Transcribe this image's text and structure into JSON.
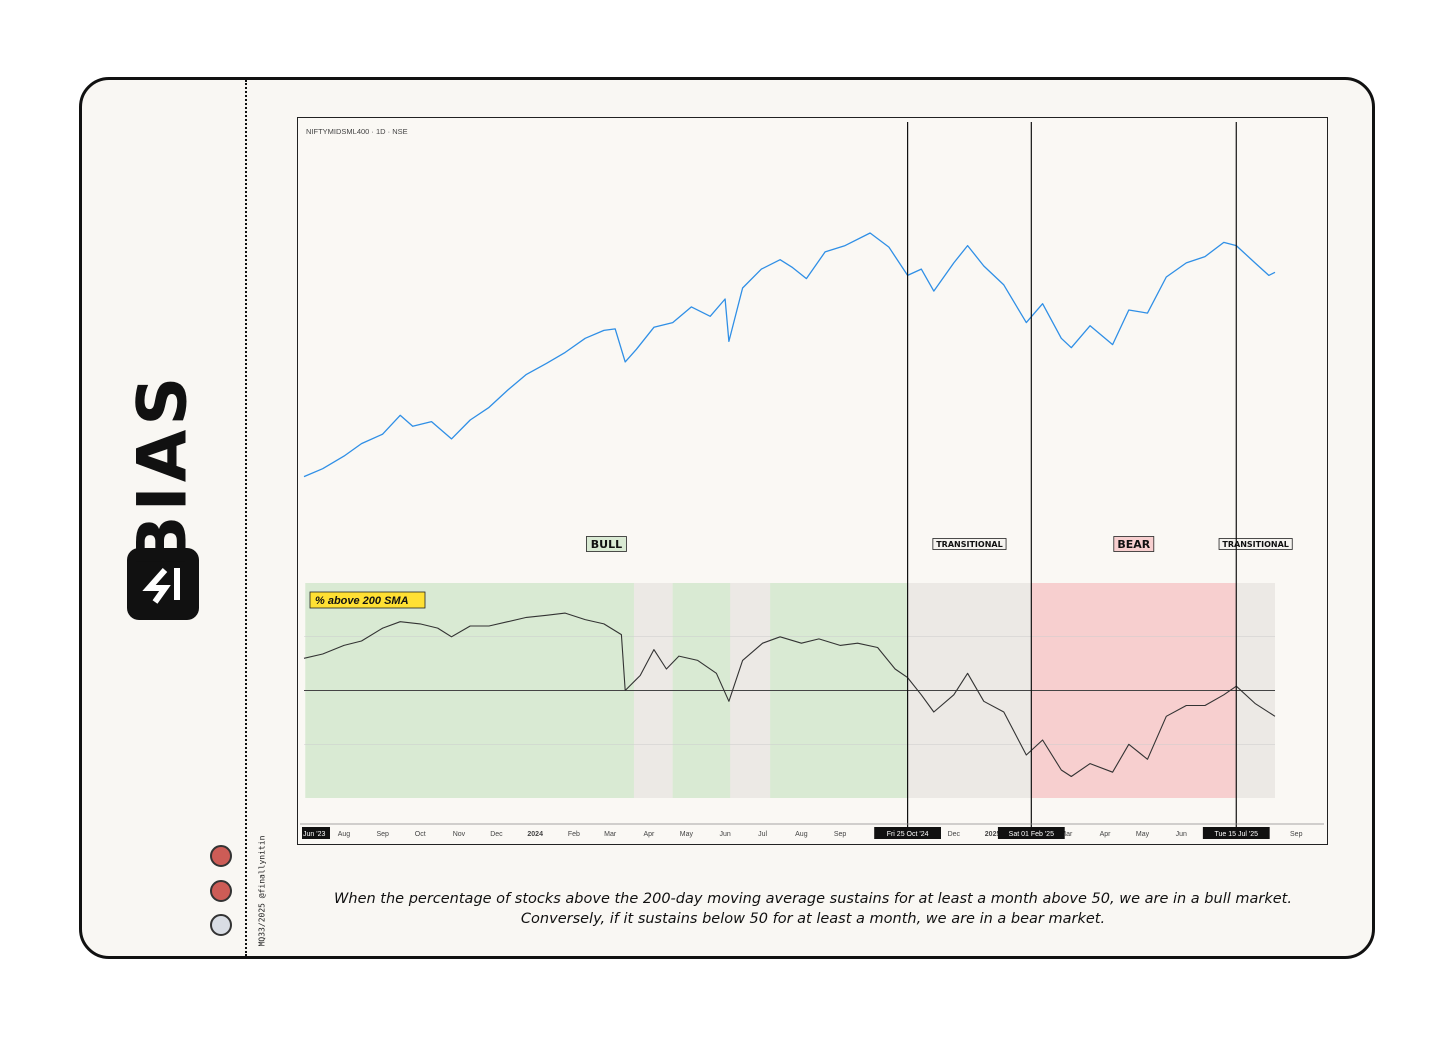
{
  "brand": {
    "name": "BIAS",
    "credit": "MQ33/2025 @finallynitin"
  },
  "dots": [
    {
      "color": "#cd5c56"
    },
    {
      "color": "#cd5c56"
    },
    {
      "color": "#d9dde4"
    }
  ],
  "caption": "When the percentage of stocks above the 200-day moving average sustains for at least a month above 50, we are in a bull market. Conversely, if it sustains below 50 for at least a month, we are in a bear market.",
  "chart_data": {
    "type": "line",
    "symbol_label": "NIFTYMIDSML400 · 1D · NSE",
    "indicator_label": "% above 200 SMA",
    "regimes": [
      {
        "label": "BULL",
        "start": "2023-07-01",
        "end": "2024-10-25",
        "color": "#d9ead3"
      },
      {
        "label": "TRANSITIONAL",
        "start": "2024-10-25",
        "end": "2025-02-01",
        "color": "#ece9e5"
      },
      {
        "label": "BEAR",
        "start": "2025-02-01",
        "end": "2025-07-15",
        "color": "#f7cfcf"
      },
      {
        "label": "TRANSITIONAL",
        "start": "2025-07-15",
        "end": "2025-08-15",
        "color": "#ece9e5"
      }
    ],
    "neutral_shading": [
      {
        "start": "2024-03-20",
        "end": "2024-04-20"
      },
      {
        "start": "2024-06-05",
        "end": "2024-07-07"
      }
    ],
    "markers": [
      {
        "date": "2024-10-25",
        "label": "Fri 25 Oct '24"
      },
      {
        "date": "2025-02-01",
        "label": "Sat 01 Feb '25"
      },
      {
        "date": "2025-07-15",
        "label": "Tue 15 Jul '25"
      }
    ],
    "x_ticks": [
      {
        "date": "2023-06-30",
        "label": "Jun '23",
        "style": "highlight"
      },
      {
        "date": "2023-08-01",
        "label": "Aug"
      },
      {
        "date": "2023-09-01",
        "label": "Sep"
      },
      {
        "date": "2023-10-01",
        "label": "Oct"
      },
      {
        "date": "2023-11-01",
        "label": "Nov"
      },
      {
        "date": "2023-12-01",
        "label": "Dec"
      },
      {
        "date": "2024-01-01",
        "label": "2024",
        "style": "bold"
      },
      {
        "date": "2024-02-01",
        "label": "Feb"
      },
      {
        "date": "2024-03-01",
        "label": "Mar"
      },
      {
        "date": "2024-04-01",
        "label": "Apr"
      },
      {
        "date": "2024-05-01",
        "label": "May"
      },
      {
        "date": "2024-06-01",
        "label": "Jun"
      },
      {
        "date": "2024-07-01",
        "label": "Jul"
      },
      {
        "date": "2024-08-01",
        "label": "Aug"
      },
      {
        "date": "2024-09-01",
        "label": "Sep"
      },
      {
        "date": "2024-12-01",
        "label": "Dec"
      },
      {
        "date": "2025-01-01",
        "label": "2025",
        "style": "bold"
      },
      {
        "date": "2025-03-01",
        "label": "Mar"
      },
      {
        "date": "2025-04-01",
        "label": "Apr"
      },
      {
        "date": "2025-05-01",
        "label": "May"
      },
      {
        "date": "2025-06-01",
        "label": "Jun"
      },
      {
        "date": "2025-09-01",
        "label": "Sep"
      }
    ],
    "x_range": [
      "2023-06-30",
      "2025-09-20"
    ],
    "price_ylim": [
      11000,
      21500
    ],
    "price_series": [
      [
        "2023-06-30",
        12000
      ],
      [
        "2023-07-15",
        12250
      ],
      [
        "2023-08-01",
        12650
      ],
      [
        "2023-08-15",
        13050
      ],
      [
        "2023-09-01",
        13350
      ],
      [
        "2023-09-15",
        13950
      ],
      [
        "2023-09-25",
        13600
      ],
      [
        "2023-10-10",
        13750
      ],
      [
        "2023-10-26",
        13200
      ],
      [
        "2023-11-10",
        13800
      ],
      [
        "2023-11-25",
        14200
      ],
      [
        "2023-12-10",
        14750
      ],
      [
        "2023-12-25",
        15250
      ],
      [
        "2024-01-10",
        15600
      ],
      [
        "2024-01-25",
        15950
      ],
      [
        "2024-02-10",
        16400
      ],
      [
        "2024-02-25",
        16650
      ],
      [
        "2024-03-05",
        16700
      ],
      [
        "2024-03-13",
        15650
      ],
      [
        "2024-03-22",
        16050
      ],
      [
        "2024-04-05",
        16750
      ],
      [
        "2024-04-20",
        16900
      ],
      [
        "2024-05-05",
        17400
      ],
      [
        "2024-05-20",
        17100
      ],
      [
        "2024-06-01",
        17650
      ],
      [
        "2024-06-04",
        16300
      ],
      [
        "2024-06-15",
        18000
      ],
      [
        "2024-06-30",
        18600
      ],
      [
        "2024-07-15",
        18900
      ],
      [
        "2024-07-25",
        18650
      ],
      [
        "2024-08-05",
        18300
      ],
      [
        "2024-08-20",
        19150
      ],
      [
        "2024-09-05",
        19350
      ],
      [
        "2024-09-25",
        19750
      ],
      [
        "2024-10-10",
        19300
      ],
      [
        "2024-10-25",
        18400
      ],
      [
        "2024-11-05",
        18600
      ],
      [
        "2024-11-15",
        17900
      ],
      [
        "2024-12-01",
        18800
      ],
      [
        "2024-12-12",
        19350
      ],
      [
        "2024-12-25",
        18700
      ],
      [
        "2025-01-10",
        18100
      ],
      [
        "2025-01-28",
        16900
      ],
      [
        "2025-02-10",
        17500
      ],
      [
        "2025-02-25",
        16400
      ],
      [
        "2025-03-05",
        16100
      ],
      [
        "2025-03-20",
        16800
      ],
      [
        "2025-04-07",
        16200
      ],
      [
        "2025-04-20",
        17300
      ],
      [
        "2025-05-05",
        17200
      ],
      [
        "2025-05-20",
        18350
      ],
      [
        "2025-06-05",
        18800
      ],
      [
        "2025-06-20",
        19000
      ],
      [
        "2025-07-05",
        19450
      ],
      [
        "2025-07-15",
        19350
      ],
      [
        "2025-07-30",
        18800
      ],
      [
        "2025-08-10",
        18400
      ],
      [
        "2025-08-15",
        18500
      ]
    ],
    "breadth_ylim": [
      0,
      100
    ],
    "breadth_reference": 50,
    "breadth_series": [
      [
        "2023-06-30",
        65
      ],
      [
        "2023-07-15",
        67
      ],
      [
        "2023-08-01",
        71
      ],
      [
        "2023-08-15",
        73
      ],
      [
        "2023-09-01",
        79
      ],
      [
        "2023-09-15",
        82
      ],
      [
        "2023-10-01",
        81
      ],
      [
        "2023-10-15",
        79
      ],
      [
        "2023-10-26",
        75
      ],
      [
        "2023-11-10",
        80
      ],
      [
        "2023-11-25",
        80
      ],
      [
        "2023-12-10",
        82
      ],
      [
        "2023-12-25",
        84
      ],
      [
        "2024-01-10",
        85
      ],
      [
        "2024-01-25",
        86
      ],
      [
        "2024-02-10",
        83
      ],
      [
        "2024-02-25",
        81
      ],
      [
        "2024-03-10",
        76
      ],
      [
        "2024-03-13",
        50
      ],
      [
        "2024-03-25",
        57
      ],
      [
        "2024-04-05",
        69
      ],
      [
        "2024-04-15",
        60
      ],
      [
        "2024-04-25",
        66
      ],
      [
        "2024-05-10",
        64
      ],
      [
        "2024-05-25",
        58
      ],
      [
        "2024-06-04",
        45
      ],
      [
        "2024-06-15",
        64
      ],
      [
        "2024-07-01",
        72
      ],
      [
        "2024-07-15",
        75
      ],
      [
        "2024-08-01",
        72
      ],
      [
        "2024-08-15",
        74
      ],
      [
        "2024-09-01",
        71
      ],
      [
        "2024-09-15",
        72
      ],
      [
        "2024-10-01",
        70
      ],
      [
        "2024-10-15",
        60
      ],
      [
        "2024-10-25",
        56
      ],
      [
        "2024-11-05",
        48
      ],
      [
        "2024-11-15",
        40
      ],
      [
        "2024-12-01",
        48
      ],
      [
        "2024-12-12",
        58
      ],
      [
        "2024-12-25",
        45
      ],
      [
        "2025-01-10",
        40
      ],
      [
        "2025-01-28",
        20
      ],
      [
        "2025-02-10",
        27
      ],
      [
        "2025-02-25",
        13
      ],
      [
        "2025-03-05",
        10
      ],
      [
        "2025-03-20",
        16
      ],
      [
        "2025-04-07",
        12
      ],
      [
        "2025-04-20",
        25
      ],
      [
        "2025-05-05",
        18
      ],
      [
        "2025-05-20",
        38
      ],
      [
        "2025-06-05",
        43
      ],
      [
        "2025-06-20",
        43
      ],
      [
        "2025-07-05",
        48
      ],
      [
        "2025-07-15",
        52
      ],
      [
        "2025-07-30",
        44
      ],
      [
        "2025-08-15",
        38
      ]
    ],
    "colors": {
      "price": "#2f8fe6",
      "breadth": "#333333",
      "highlight": "#ffe033"
    }
  }
}
